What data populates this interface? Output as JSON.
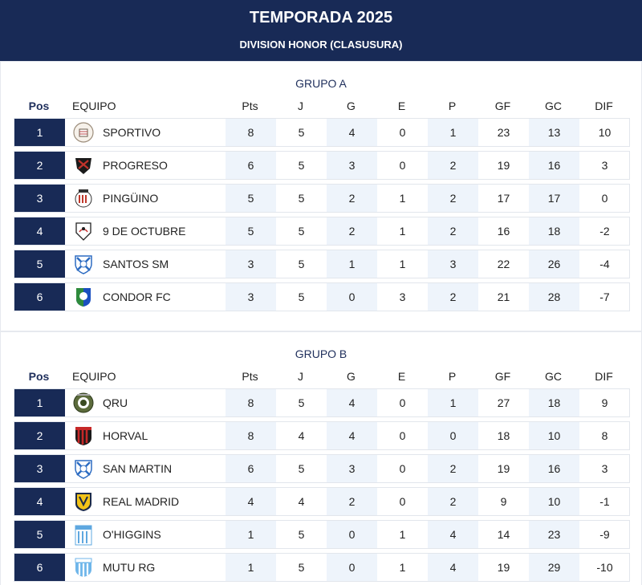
{
  "header": {
    "title": "TEMPORADA 2025",
    "subtitle": "DIVISION HONOR (CLASUSURA)"
  },
  "columns": {
    "pos": "Pos",
    "team": "EQUIPO",
    "pts": "Pts",
    "j": "J",
    "g": "G",
    "e": "E",
    "p": "P",
    "gf": "GF",
    "gc": "GC",
    "dif": "DIF"
  },
  "groups": [
    {
      "title": "GRUPO A",
      "rows": [
        {
          "pos": "1",
          "team": "SPORTIVO",
          "crest": "sportivo-crest-icon",
          "pts": "8",
          "j": "5",
          "g": "4",
          "e": "0",
          "p": "1",
          "gf": "23",
          "gc": "13",
          "dif": "10"
        },
        {
          "pos": "2",
          "team": "PROGRESO",
          "crest": "progreso-crest-icon",
          "pts": "6",
          "j": "5",
          "g": "3",
          "e": "0",
          "p": "2",
          "gf": "19",
          "gc": "16",
          "dif": "3"
        },
        {
          "pos": "3",
          "team": "PINGÜINO",
          "crest": "pinguino-crest-icon",
          "pts": "5",
          "j": "5",
          "g": "2",
          "e": "1",
          "p": "2",
          "gf": "17",
          "gc": "17",
          "dif": "0"
        },
        {
          "pos": "4",
          "team": "9 DE OCTUBRE",
          "crest": "9-de-octubre-crest-icon",
          "pts": "5",
          "j": "5",
          "g": "2",
          "e": "1",
          "p": "2",
          "gf": "16",
          "gc": "18",
          "dif": "-2"
        },
        {
          "pos": "5",
          "team": "SANTOS SM",
          "crest": "santos-sm-crest-icon",
          "pts": "3",
          "j": "5",
          "g": "1",
          "e": "1",
          "p": "3",
          "gf": "22",
          "gc": "26",
          "dif": "-4"
        },
        {
          "pos": "6",
          "team": "CONDOR FC",
          "crest": "condor-fc-crest-icon",
          "pts": "3",
          "j": "5",
          "g": "0",
          "e": "3",
          "p": "2",
          "gf": "21",
          "gc": "28",
          "dif": "-7"
        }
      ]
    },
    {
      "title": "GRUPO B",
      "rows": [
        {
          "pos": "1",
          "team": "QRU",
          "crest": "qru-crest-icon",
          "pts": "8",
          "j": "5",
          "g": "4",
          "e": "0",
          "p": "1",
          "gf": "27",
          "gc": "18",
          "dif": "9"
        },
        {
          "pos": "2",
          "team": "HORVAL",
          "crest": "horval-crest-icon",
          "pts": "8",
          "j": "4",
          "g": "4",
          "e": "0",
          "p": "0",
          "gf": "18",
          "gc": "10",
          "dif": "8"
        },
        {
          "pos": "3",
          "team": "SAN MARTIN",
          "crest": "san-martin-crest-icon",
          "pts": "6",
          "j": "5",
          "g": "3",
          "e": "0",
          "p": "2",
          "gf": "19",
          "gc": "16",
          "dif": "3"
        },
        {
          "pos": "4",
          "team": "REAL MADRID",
          "crest": "real-madrid-crest-icon",
          "pts": "4",
          "j": "4",
          "g": "2",
          "e": "0",
          "p": "2",
          "gf": "9",
          "gc": "10",
          "dif": "-1"
        },
        {
          "pos": "5",
          "team": "O'HIGGINS",
          "crest": "ohiggins-crest-icon",
          "pts": "1",
          "j": "5",
          "g": "0",
          "e": "1",
          "p": "4",
          "gf": "14",
          "gc": "23",
          "dif": "-9"
        },
        {
          "pos": "6",
          "team": "MUTU RG",
          "crest": "mutu-rg-crest-icon",
          "pts": "1",
          "j": "5",
          "g": "0",
          "e": "1",
          "p": "4",
          "gf": "19",
          "gc": "29",
          "dif": "-10"
        }
      ]
    }
  ],
  "colors": {
    "navy": "#182a56",
    "stripe": "#eef4fb"
  }
}
